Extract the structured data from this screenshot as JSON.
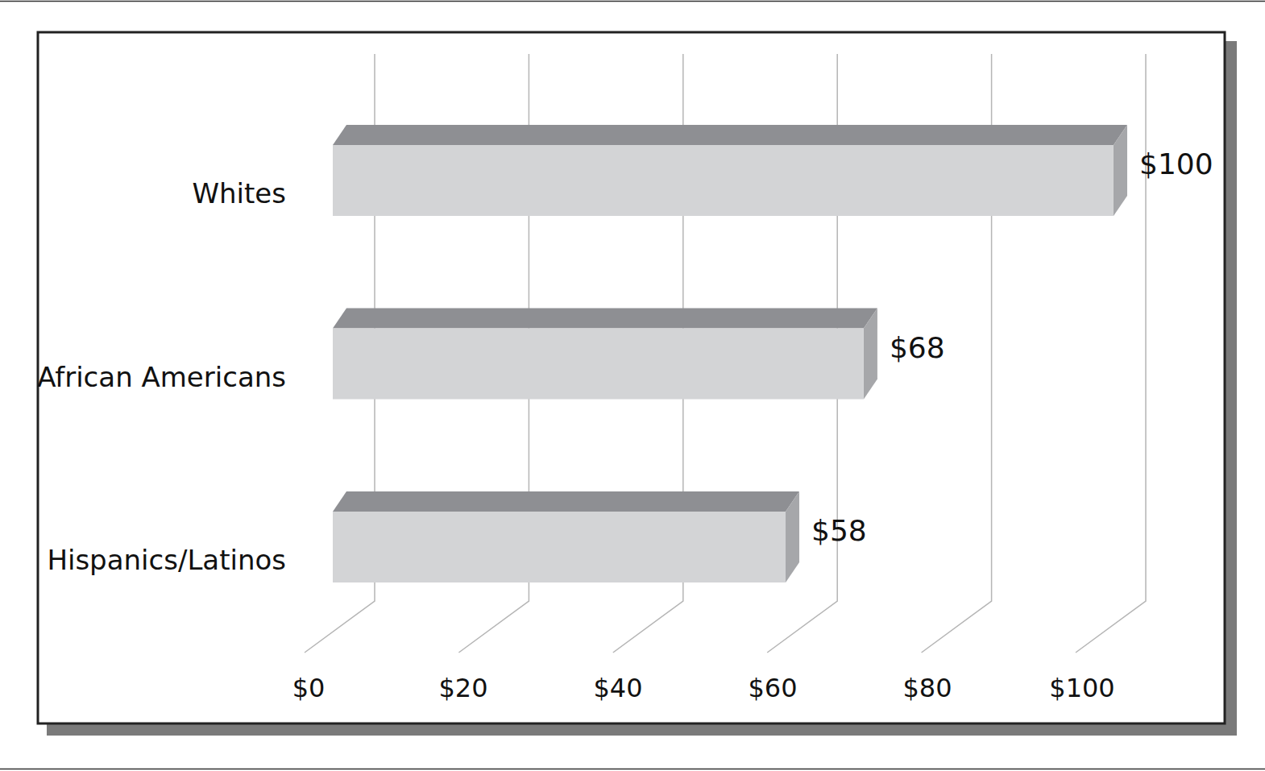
{
  "chart_data": {
    "type": "bar",
    "orientation": "horizontal",
    "categories": [
      "Whites",
      "African Americans",
      "Hispanics/Latinos"
    ],
    "values": [
      100,
      68,
      58
    ],
    "value_labels": [
      "$100",
      "$68",
      "$58"
    ],
    "data_labels": true,
    "xlim": [
      0,
      100
    ],
    "xticks": [
      {
        "value": 0,
        "label": "$0"
      },
      {
        "value": 20,
        "label": "$20"
      },
      {
        "value": 40,
        "label": "$40"
      },
      {
        "value": 60,
        "label": "$60"
      },
      {
        "value": 80,
        "label": "$80"
      },
      {
        "value": 100,
        "label": "$100"
      }
    ],
    "grid": true,
    "color": "#d3d4d6"
  }
}
